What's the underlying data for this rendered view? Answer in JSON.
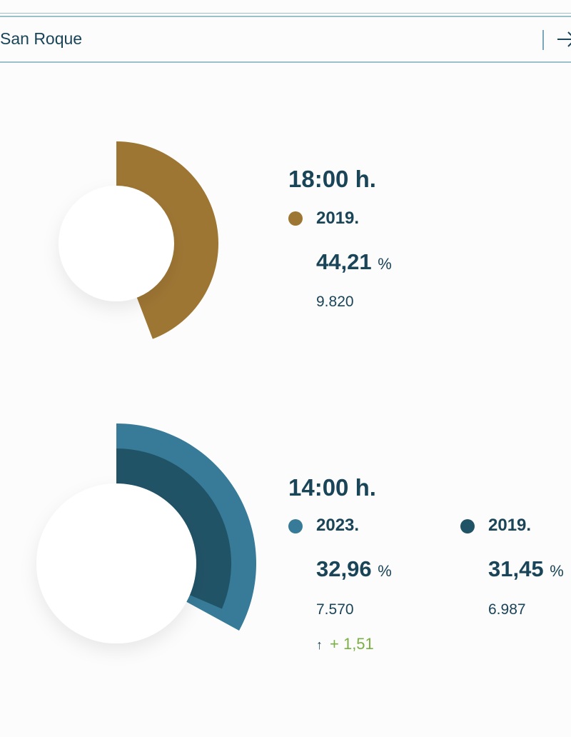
{
  "search": {
    "value": "San Roque",
    "go_icon": "arrow-right-icon"
  },
  "colors": {
    "gold": "#9e7634",
    "teal_light": "#377b98",
    "teal_dark": "#215367",
    "positive": "#7ab043",
    "text": "#1a4458"
  },
  "cards": [
    {
      "hour": "18:00 h.",
      "entries": [
        {
          "year": "2019.",
          "percent": "44,21",
          "unit": "%",
          "count": "9.820",
          "color": "#9e7634",
          "value": 44.21
        }
      ]
    },
    {
      "hour": "14:00 h.",
      "entries": [
        {
          "year": "2023.",
          "percent": "32,96",
          "unit": "%",
          "count": "7.570",
          "color": "#377b98",
          "value": 32.96
        },
        {
          "year": "2019.",
          "percent": "31,45",
          "unit": "%",
          "count": "6.987",
          "color": "#215367",
          "value": 31.45
        }
      ],
      "difference": "+ 1,51"
    }
  ]
}
